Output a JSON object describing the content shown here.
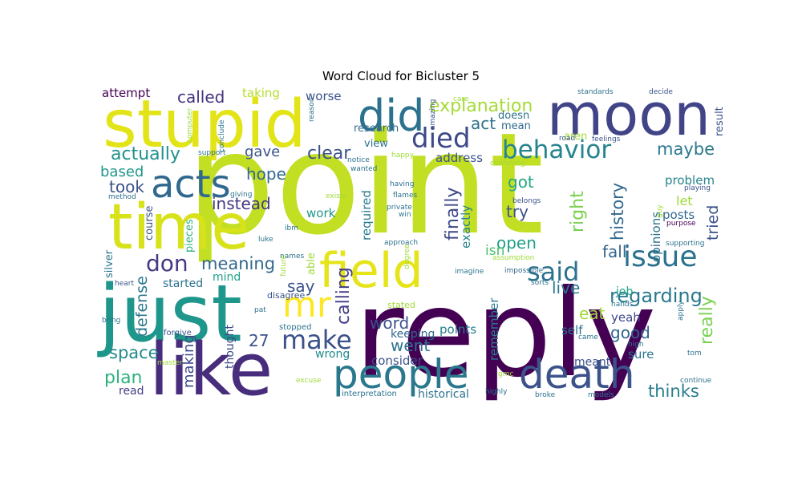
{
  "chart_data": {
    "type": "wordcloud",
    "title": "Word Cloud for Bicluster 5",
    "words": [
      {
        "text": "point",
        "color": "#c2df23"
      },
      {
        "text": "reply",
        "color": "#440154"
      },
      {
        "text": "just",
        "color": "#1f968b"
      },
      {
        "text": "like",
        "color": "#472d7b"
      },
      {
        "text": "stupid",
        "color": "#e2e418"
      },
      {
        "text": "moon",
        "color": "#414487"
      },
      {
        "text": "time",
        "color": "#d8e219"
      },
      {
        "text": "did",
        "color": "#2c728e"
      },
      {
        "text": "field",
        "color": "#e5e419"
      },
      {
        "text": "people",
        "color": "#2a788e"
      },
      {
        "text": "death",
        "color": "#3b528b"
      },
      {
        "text": "acts",
        "color": "#31688e"
      },
      {
        "text": "issue",
        "color": "#2c728e"
      },
      {
        "text": "behavior",
        "color": "#25848e"
      },
      {
        "text": "died",
        "color": "#3e4989"
      },
      {
        "text": "mr",
        "color": "#fde725"
      },
      {
        "text": "make",
        "color": "#3b528b"
      },
      {
        "text": "said",
        "color": "#2c728e"
      },
      {
        "text": "don",
        "color": "#443983"
      },
      {
        "text": "explanation",
        "color": "#a5db36"
      },
      {
        "text": "actually",
        "color": "#21918c"
      },
      {
        "text": "meaning",
        "color": "#31688e"
      },
      {
        "text": "clear",
        "color": "#3b528b"
      },
      {
        "text": "called",
        "color": "#46327e"
      },
      {
        "text": "regarding",
        "color": "#2a788e"
      },
      {
        "text": "thinks",
        "color": "#287c8e"
      },
      {
        "text": "instead",
        "color": "#443983"
      },
      {
        "text": "maybe",
        "color": "#2a788e"
      },
      {
        "text": "history",
        "color": "#31688e"
      },
      {
        "text": "space",
        "color": "#238a8d"
      },
      {
        "text": "good",
        "color": "#32648e"
      },
      {
        "text": "plan",
        "color": "#2db27d"
      },
      {
        "text": "finally",
        "color": "#3e4989"
      },
      {
        "text": "really",
        "color": "#7ad151"
      },
      {
        "text": "calling",
        "color": "#433e85"
      },
      {
        "text": "right",
        "color": "#7ad151"
      },
      {
        "text": "defense",
        "color": "#2a788e"
      },
      {
        "text": "hope",
        "color": "#31688e"
      },
      {
        "text": "took",
        "color": "#3b528b"
      },
      {
        "text": "got",
        "color": "#22a884"
      },
      {
        "text": "try",
        "color": "#3b528b"
      },
      {
        "text": "open",
        "color": "#1fa187"
      },
      {
        "text": "act",
        "color": "#2c728e"
      },
      {
        "text": "live",
        "color": "#2a788e"
      },
      {
        "text": "word",
        "color": "#3b528b"
      },
      {
        "text": "went",
        "color": "#2c728e"
      },
      {
        "text": "fall",
        "color": "#32648e"
      },
      {
        "text": "eat",
        "color": "#9fda3a"
      },
      {
        "text": "say",
        "color": "#3b528b"
      },
      {
        "text": "27",
        "color": "#3b528b"
      },
      {
        "text": "based",
        "color": "#1f968b"
      },
      {
        "text": "tried",
        "color": "#3b528b"
      },
      {
        "text": "making",
        "color": "#3e4989"
      },
      {
        "text": "isn",
        "color": "#4ac16d"
      },
      {
        "text": "gave",
        "color": "#3b528b"
      },
      {
        "text": "address",
        "color": "#3b528b"
      },
      {
        "text": "problem",
        "color": "#25848e"
      },
      {
        "text": "let",
        "color": "#a0da39"
      },
      {
        "text": "posts",
        "color": "#31688e"
      },
      {
        "text": "opinions",
        "color": "#2c728e"
      },
      {
        "text": "exactly",
        "color": "#25848e"
      },
      {
        "text": "required",
        "color": "#287c8e"
      },
      {
        "text": "work",
        "color": "#1f968b"
      },
      {
        "text": "remember",
        "color": "#287c8e"
      },
      {
        "text": "yeah",
        "color": "#3e4989"
      },
      {
        "text": "self",
        "color": "#2c728e"
      },
      {
        "text": "sure",
        "color": "#2c728e"
      },
      {
        "text": "points",
        "color": "#287c8e"
      },
      {
        "text": "consider",
        "color": "#3b528b"
      },
      {
        "text": "keeping",
        "color": "#31688e"
      },
      {
        "text": "wrong",
        "color": "#238a8d"
      },
      {
        "text": "historical",
        "color": "#2c728e"
      },
      {
        "text": "read",
        "color": "#433e85"
      },
      {
        "text": "thought",
        "color": "#3e4989"
      },
      {
        "text": "started",
        "color": "#2c728e"
      },
      {
        "text": "mind",
        "color": "#1fa187"
      },
      {
        "text": "meant",
        "color": "#3b528b"
      },
      {
        "text": "job",
        "color": "#1fa187"
      },
      {
        "text": "attempt",
        "color": "#440154"
      },
      {
        "text": "taking",
        "color": "#b5de2b"
      },
      {
        "text": "worse",
        "color": "#3b528b"
      },
      {
        "text": "research",
        "color": "#31688e"
      },
      {
        "text": "doesn",
        "color": "#2c728e"
      },
      {
        "text": "mean",
        "color": "#31688e"
      },
      {
        "text": "aren",
        "color": "#a0da39"
      },
      {
        "text": "result",
        "color": "#3b528b"
      },
      {
        "text": "view",
        "color": "#2c728e"
      },
      {
        "text": "course",
        "color": "#3b528b"
      },
      {
        "text": "pieces",
        "color": "#2db27d"
      },
      {
        "text": "silver",
        "color": "#2a788e"
      },
      {
        "text": "standards",
        "color": "#2c728e"
      },
      {
        "text": "decide",
        "color": "#3b528b"
      },
      {
        "text": "impossible",
        "color": "#31688e"
      },
      {
        "text": "imagine",
        "color": "#2c728e"
      },
      {
        "text": "interpretation",
        "color": "#2c728e"
      },
      {
        "text": "highly",
        "color": "#2c728e"
      },
      {
        "text": "broke",
        "color": "#2c728e"
      },
      {
        "text": "models",
        "color": "#2c728e"
      },
      {
        "text": "continue",
        "color": "#2c728e"
      },
      {
        "text": "computer",
        "color": "#a0da39"
      },
      {
        "text": "conclude",
        "color": "#2c728e"
      },
      {
        "text": "reason",
        "color": "#2c728e"
      },
      {
        "text": "amazing",
        "color": "#3b528b"
      },
      {
        "text": "support",
        "color": "#2c728e"
      },
      {
        "text": "road",
        "color": "#3b528b"
      },
      {
        "text": "feelings",
        "color": "#3b528b"
      },
      {
        "text": "happy",
        "color": "#a0da39"
      },
      {
        "text": "notice",
        "color": "#2c728e"
      },
      {
        "text": "wanted",
        "color": "#2c728e"
      },
      {
        "text": "confusing",
        "color": "#a0da39"
      },
      {
        "text": "care",
        "color": "#a0da39"
      },
      {
        "text": "playing",
        "color": "#3b528b"
      },
      {
        "text": "belongs",
        "color": "#3b528b"
      },
      {
        "text": "method",
        "color": "#2c728e"
      },
      {
        "text": "giving",
        "color": "#2c728e"
      },
      {
        "text": "having",
        "color": "#2c728e"
      },
      {
        "text": "flames",
        "color": "#2c728e"
      },
      {
        "text": "exists",
        "color": "#a0da39"
      },
      {
        "text": "private",
        "color": "#2c728e"
      },
      {
        "text": "win",
        "color": "#2c728e"
      },
      {
        "text": "ibm",
        "color": "#2c728e"
      },
      {
        "text": "luke",
        "color": "#2c728e"
      },
      {
        "text": "guy",
        "color": "#a0da39"
      },
      {
        "text": "purpose",
        "color": "#440154"
      },
      {
        "text": "approach",
        "color": "#2c728e"
      },
      {
        "text": "supporting",
        "color": "#2c728e"
      },
      {
        "text": "assumption",
        "color": "#a0da39"
      },
      {
        "text": "degree",
        "color": "#a0da39"
      },
      {
        "text": "able",
        "color": "#a0da39"
      },
      {
        "text": "heart",
        "color": "#3b528b"
      },
      {
        "text": "names",
        "color": "#2c728e"
      },
      {
        "text": "future",
        "color": "#a0da39"
      },
      {
        "text": "disagree",
        "color": "#3b528b"
      },
      {
        "text": "pat",
        "color": "#2c728e"
      },
      {
        "text": "stated",
        "color": "#a0da39"
      },
      {
        "text": "hands",
        "color": "#2c728e"
      },
      {
        "text": "apply",
        "color": "#2c728e"
      },
      {
        "text": "high",
        "color": "#2c728e"
      },
      {
        "text": "sorts",
        "color": "#2c728e"
      },
      {
        "text": "bring",
        "color": "#2c728e"
      },
      {
        "text": "forgive",
        "color": "#3b528b"
      },
      {
        "text": "stopped",
        "color": "#2c728e"
      },
      {
        "text": "master",
        "color": "#a0da39"
      },
      {
        "text": "excuse",
        "color": "#a0da39"
      },
      {
        "text": "came",
        "color": "#2c728e"
      },
      {
        "text": "tom",
        "color": "#2c728e"
      },
      {
        "text": "gmc",
        "color": "#a0da39"
      }
    ]
  }
}
